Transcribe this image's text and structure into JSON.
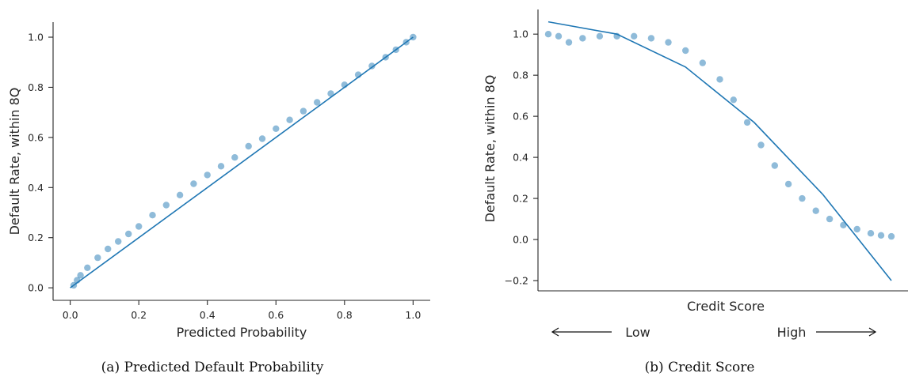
{
  "chart_data": [
    {
      "type": "scatter",
      "caption": "(a) Predicted Default Probability",
      "xlabel": "Predicted Probability",
      "ylabel": "Default Rate, within 8Q",
      "xlim": [
        -0.05,
        1.05
      ],
      "ylim": [
        -0.05,
        1.06
      ],
      "x_ticks": [
        0.0,
        0.2,
        0.4,
        0.6,
        0.8,
        1.0
      ],
      "x_tick_labels": [
        "0.0",
        "0.2",
        "0.4",
        "0.6",
        "0.8",
        "1.0"
      ],
      "y_ticks": [
        0.0,
        0.2,
        0.4,
        0.6,
        0.8,
        1.0
      ],
      "y_tick_labels": [
        "0.0",
        "0.2",
        "0.4",
        "0.6",
        "0.8",
        "1.0"
      ],
      "grid": false,
      "color": "#1f77b4",
      "points": [
        [
          0.01,
          0.01
        ],
        [
          0.02,
          0.03
        ],
        [
          0.03,
          0.05
        ],
        [
          0.05,
          0.08
        ],
        [
          0.08,
          0.12
        ],
        [
          0.11,
          0.155
        ],
        [
          0.14,
          0.185
        ],
        [
          0.17,
          0.215
        ],
        [
          0.2,
          0.245
        ],
        [
          0.24,
          0.29
        ],
        [
          0.28,
          0.33
        ],
        [
          0.32,
          0.37
        ],
        [
          0.36,
          0.415
        ],
        [
          0.4,
          0.45
        ],
        [
          0.44,
          0.485
        ],
        [
          0.48,
          0.52
        ],
        [
          0.52,
          0.565
        ],
        [
          0.56,
          0.595
        ],
        [
          0.6,
          0.635
        ],
        [
          0.64,
          0.67
        ],
        [
          0.68,
          0.705
        ],
        [
          0.72,
          0.74
        ],
        [
          0.76,
          0.775
        ],
        [
          0.8,
          0.81
        ],
        [
          0.84,
          0.85
        ],
        [
          0.88,
          0.885
        ],
        [
          0.92,
          0.92
        ],
        [
          0.95,
          0.95
        ],
        [
          0.98,
          0.98
        ],
        [
          1.0,
          1.0
        ]
      ],
      "fit_line": [
        [
          0.0,
          0.0
        ],
        [
          1.0,
          1.0
        ]
      ]
    },
    {
      "type": "scatter",
      "caption": "(b) Credit Score",
      "xlabel": "Credit Score",
      "ylabel": "Default Rate, within 8Q",
      "x_annotation_low": "Low",
      "x_annotation_high": "High",
      "xlim": [
        -0.03,
        1.03
      ],
      "ylim": [
        -0.25,
        1.12
      ],
      "y_ticks": [
        -0.2,
        0.0,
        0.2,
        0.4,
        0.6,
        0.8,
        1.0
      ],
      "y_tick_labels": [
        "−0.2",
        "0.0",
        "0.2",
        "0.4",
        "0.6",
        "0.8",
        "1.0"
      ],
      "grid": false,
      "color": "#1f77b4",
      "points": [
        [
          0.0,
          1.0
        ],
        [
          0.03,
          0.99
        ],
        [
          0.06,
          0.96
        ],
        [
          0.1,
          0.98
        ],
        [
          0.15,
          0.99
        ],
        [
          0.2,
          0.99
        ],
        [
          0.25,
          0.99
        ],
        [
          0.3,
          0.98
        ],
        [
          0.35,
          0.96
        ],
        [
          0.4,
          0.92
        ],
        [
          0.45,
          0.86
        ],
        [
          0.5,
          0.78
        ],
        [
          0.54,
          0.68
        ],
        [
          0.58,
          0.57
        ],
        [
          0.62,
          0.46
        ],
        [
          0.66,
          0.36
        ],
        [
          0.7,
          0.27
        ],
        [
          0.74,
          0.2
        ],
        [
          0.78,
          0.14
        ],
        [
          0.82,
          0.1
        ],
        [
          0.86,
          0.07
        ],
        [
          0.9,
          0.05
        ],
        [
          0.94,
          0.03
        ],
        [
          0.97,
          0.02
        ],
        [
          1.0,
          0.015
        ]
      ],
      "fit_line": [
        [
          0.0,
          1.06
        ],
        [
          0.2,
          1.0
        ],
        [
          0.4,
          0.84
        ],
        [
          0.6,
          0.57
        ],
        [
          0.8,
          0.22
        ],
        [
          1.0,
          -0.2
        ]
      ]
    }
  ]
}
